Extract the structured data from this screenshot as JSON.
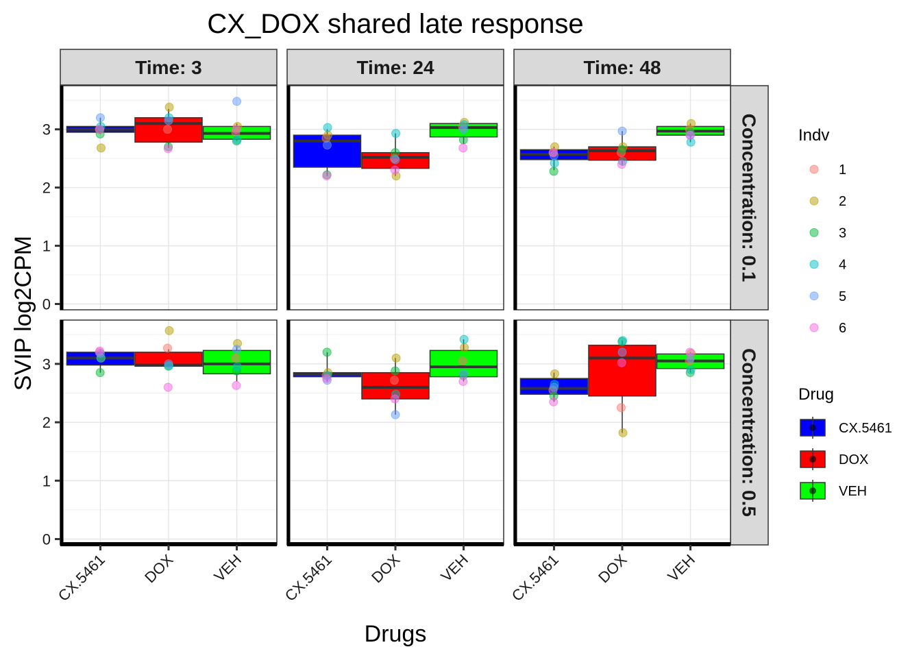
{
  "chart_data": {
    "type": "box",
    "title": "CX_DOX shared late response",
    "xlabel": "Drugs",
    "ylabel": "SVIP  log2CPM",
    "ylim": [
      -0.1,
      3.75
    ],
    "yticks": [
      0,
      1,
      2,
      3
    ],
    "categories": [
      "CX.5461",
      "DOX",
      "VEH"
    ],
    "drug_colors": {
      "CX.5461": "#0000ff",
      "DOX": "#ff0000",
      "VEH": "#00ff00"
    },
    "indv_colors": {
      "1": "#F8766D",
      "2": "#B79F00",
      "3": "#00BA38",
      "4": "#00BFC4",
      "5": "#619CFF",
      "6": "#F564E3"
    },
    "col_facets": [
      "Time: 3",
      "Time: 24",
      "Time: 48"
    ],
    "row_facets": [
      "Concentration: 0.1",
      "Concentration: 0.5"
    ],
    "legend": {
      "indv_title": "Indv",
      "indv_labels": [
        "1",
        "2",
        "3",
        "4",
        "5",
        "6"
      ],
      "drug_title": "Drug",
      "drug_labels": [
        "CX.5461",
        "DOX",
        "VEH"
      ],
      "position": "right"
    },
    "panels": [
      {
        "row": 0,
        "col": 0,
        "boxes": [
          {
            "drug": "CX.5461",
            "q1": 2.95,
            "median": 3.0,
            "q3": 3.05,
            "lo": 2.92,
            "hi": 3.2,
            "points": [
              3.0,
              2.68,
              2.92,
              3.05,
              3.2,
              3.0
            ]
          },
          {
            "drug": "DOX",
            "q1": 2.78,
            "median": 3.1,
            "q3": 3.2,
            "lo": 2.68,
            "hi": 3.35,
            "points": [
              3.0,
              3.38,
              2.7,
              3.2,
              3.15,
              2.67
            ]
          },
          {
            "drug": "VEH",
            "q1": 2.83,
            "median": 2.93,
            "q3": 3.05,
            "lo": 2.8,
            "hi": 3.1,
            "points": [
              2.95,
              3.05,
              2.8,
              2.82,
              3.48,
              3.0
            ]
          }
        ]
      },
      {
        "row": 0,
        "col": 1,
        "boxes": [
          {
            "drug": "CX.5461",
            "q1": 2.35,
            "median": 2.8,
            "q3": 2.9,
            "lo": 2.2,
            "hi": 3.0,
            "points": [
              2.85,
              2.9,
              2.22,
              3.03,
              2.73,
              2.2
            ]
          },
          {
            "drug": "DOX",
            "q1": 2.33,
            "median": 2.52,
            "q3": 2.6,
            "lo": 2.2,
            "hi": 2.93,
            "points": [
              2.5,
              2.2,
              2.6,
              2.93,
              2.48,
              2.3
            ]
          },
          {
            "drug": "VEH",
            "q1": 2.87,
            "median": 3.03,
            "q3": 3.1,
            "lo": 2.75,
            "hi": 3.1,
            "points": [
              3.05,
              3.12,
              2.82,
              3.08,
              3.0,
              2.68
            ]
          }
        ]
      },
      {
        "row": 0,
        "col": 2,
        "boxes": [
          {
            "drug": "CX.5461",
            "q1": 2.48,
            "median": 2.57,
            "q3": 2.65,
            "lo": 2.3,
            "hi": 2.7,
            "points": [
              2.6,
              2.7,
              2.28,
              2.42,
              2.55,
              2.6
            ]
          },
          {
            "drug": "DOX",
            "q1": 2.47,
            "median": 2.63,
            "q3": 2.7,
            "lo": 2.38,
            "hi": 2.97,
            "points": [
              2.6,
              2.7,
              2.65,
              2.45,
              2.97,
              2.4
            ]
          },
          {
            "drug": "VEH",
            "q1": 2.9,
            "median": 2.97,
            "q3": 3.05,
            "lo": 2.78,
            "hi": 3.1,
            "points": [
              3.0,
              3.1,
              2.95,
              2.78,
              2.9,
              2.9
            ]
          }
        ]
      },
      {
        "row": 1,
        "col": 0,
        "boxes": [
          {
            "drug": "CX.5461",
            "q1": 2.98,
            "median": 3.1,
            "q3": 3.2,
            "lo": 2.85,
            "hi": 3.25,
            "points": [
              3.2,
              3.1,
              2.85,
              3.1,
              3.18,
              3.22
            ]
          },
          {
            "drug": "DOX",
            "q1": 2.96,
            "median": 2.98,
            "q3": 3.2,
            "lo": 2.95,
            "hi": 3.25,
            "points": [
              3.27,
              3.57,
              2.96,
              2.97,
              3.0,
              2.6
            ]
          },
          {
            "drug": "VEH",
            "q1": 2.83,
            "median": 3.0,
            "q3": 3.23,
            "lo": 2.7,
            "hi": 3.3,
            "points": [
              3.1,
              3.35,
              2.88,
              2.95,
              3.25,
              2.63
            ]
          }
        ]
      },
      {
        "row": 1,
        "col": 1,
        "boxes": [
          {
            "drug": "CX.5461",
            "q1": 2.78,
            "median": 2.82,
            "q3": 2.85,
            "lo": 2.7,
            "hi": 3.2,
            "points": [
              2.8,
              2.85,
              3.2,
              2.8,
              2.72,
              2.75
            ]
          },
          {
            "drug": "DOX",
            "q1": 2.4,
            "median": 2.6,
            "q3": 2.85,
            "lo": 2.13,
            "hi": 3.1,
            "points": [
              2.72,
              3.1,
              2.88,
              2.48,
              2.13,
              2.4
            ]
          },
          {
            "drug": "VEH",
            "q1": 2.78,
            "median": 2.95,
            "q3": 3.23,
            "lo": 2.7,
            "hi": 3.42,
            "points": [
              3.05,
              3.28,
              2.8,
              3.42,
              2.83,
              2.7
            ]
          }
        ]
      },
      {
        "row": 1,
        "col": 2,
        "boxes": [
          {
            "drug": "CX.5461",
            "q1": 2.48,
            "median": 2.58,
            "q3": 2.75,
            "lo": 2.35,
            "hi": 2.85,
            "points": [
              2.55,
              2.83,
              2.45,
              2.65,
              2.6,
              2.35
            ]
          },
          {
            "drug": "DOX",
            "q1": 2.45,
            "median": 3.1,
            "q3": 3.32,
            "lo": 1.82,
            "hi": 3.4,
            "points": [
              2.25,
              1.82,
              3.38,
              3.4,
              3.2,
              3.02
            ]
          },
          {
            "drug": "VEH",
            "q1": 2.92,
            "median": 3.05,
            "q3": 3.17,
            "lo": 2.85,
            "hi": 3.2,
            "points": [
              3.05,
              3.18,
              2.85,
              2.9,
              3.1,
              3.2
            ]
          }
        ]
      }
    ]
  }
}
